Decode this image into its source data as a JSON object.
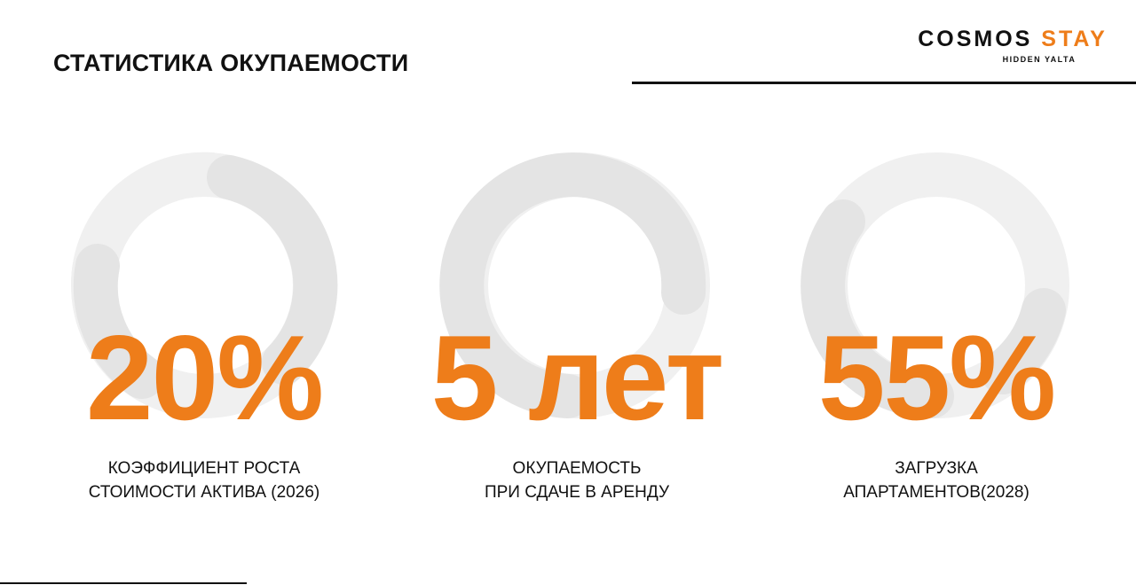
{
  "header": {
    "title": "СТАТИСТИКА ОКУПАЕМОСТИ",
    "logo": {
      "brand": "COSMOS",
      "accent": "STAY",
      "tagline": "HIDDEN YALTA"
    }
  },
  "stats": [
    {
      "value": "20%",
      "caption": [
        "КОЭФФИЦИЕНТ РОСТА",
        "СТОИМОСТИ АКТИВА (2026)"
      ]
    },
    {
      "value": "5 лет",
      "caption": [
        "ОКУПАЕМОСТЬ",
        "ПРИ СДАЧЕ В АРЕНДУ"
      ]
    },
    {
      "value": "55%",
      "caption": [
        "ЗАГРУЗКА",
        "АПАРТАМЕНТОВ(2028)"
      ]
    }
  ]
}
